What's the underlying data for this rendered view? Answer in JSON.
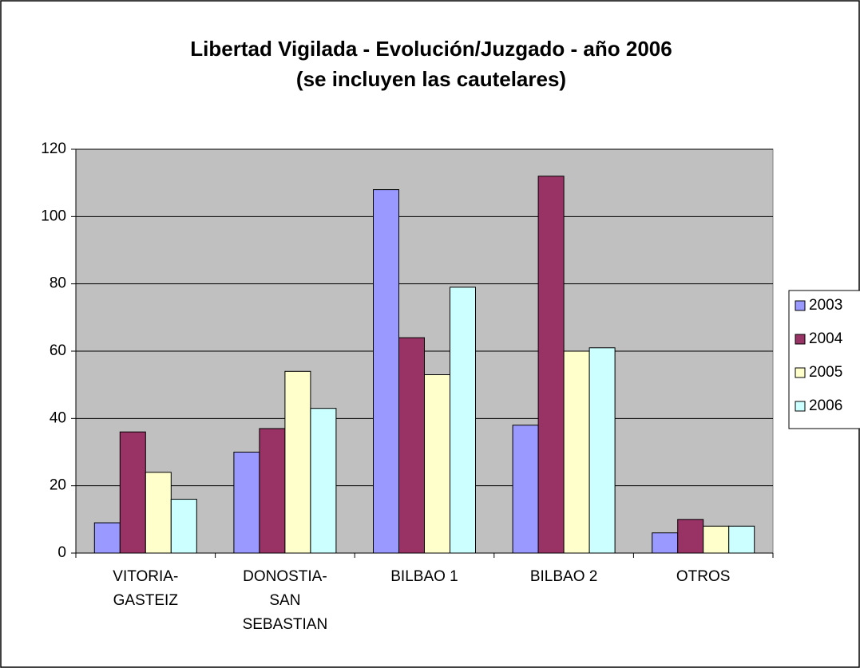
{
  "chart_data": {
    "type": "bar",
    "title": [
      "Libertad Vigilada - Evolución/Juzgado - año 2006",
      "(se incluyen las cautelares)"
    ],
    "categories": [
      "VITORIA-GASTEIZ",
      "DONOSTIA-SAN SEBASTIAN",
      "BILBAO 1",
      "BILBAO 2",
      "OTROS"
    ],
    "series": [
      {
        "name": "2003",
        "color": "#9999ff",
        "values": [
          9,
          30,
          108,
          38,
          6
        ]
      },
      {
        "name": "2004",
        "color": "#993366",
        "values": [
          36,
          37,
          64,
          112,
          10
        ]
      },
      {
        "name": "2005",
        "color": "#ffffcc",
        "values": [
          24,
          54,
          53,
          60,
          8
        ]
      },
      {
        "name": "2006",
        "color": "#ccffff",
        "values": [
          16,
          43,
          79,
          61,
          8
        ]
      }
    ],
    "ylim": [
      0,
      120
    ],
    "yticks": [
      0,
      20,
      40,
      60,
      80,
      100,
      120
    ],
    "grid": true,
    "legend": "right"
  }
}
